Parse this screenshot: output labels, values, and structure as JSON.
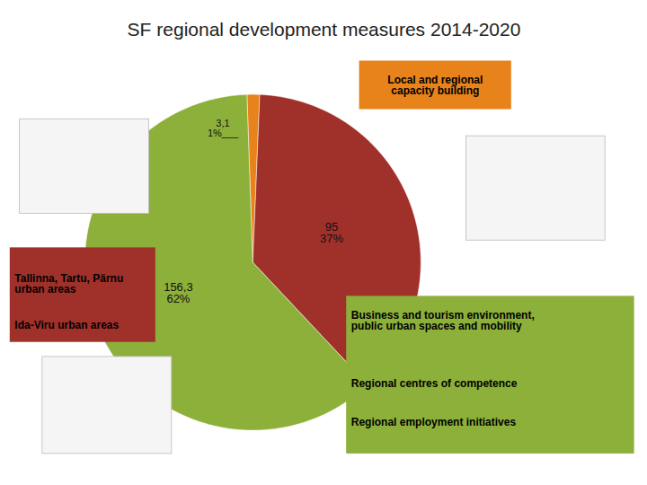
{
  "chart_data": {
    "type": "pie",
    "title": "SF regional development measures 2014-2020",
    "values": [
      3.1,
      95,
      156.3
    ],
    "value_labels": [
      "3,1",
      "95",
      "156,3"
    ],
    "shares": [
      1,
      37,
      62
    ],
    "share_labels": [
      "1%___",
      "37%",
      "62%"
    ],
    "colors": [
      "#E8821A",
      "#A0302A",
      "#8DB03A"
    ],
    "data_labels": true,
    "annotations": [
      {
        "color": "#E8821A",
        "texts": [
          "Local and regional\ncapacity building"
        ]
      },
      {
        "color": "#A0302A",
        "texts": [
          "Tallinna, Tartu, Pärnu\nurban areas",
          "Ida-Viru urban areas"
        ]
      },
      {
        "color": "#8DB03A",
        "texts": [
          "Business and tourism environment,\npublic urban spaces and mobility",
          "Regional centres of competence",
          "Regional employment initiatives"
        ]
      }
    ]
  }
}
